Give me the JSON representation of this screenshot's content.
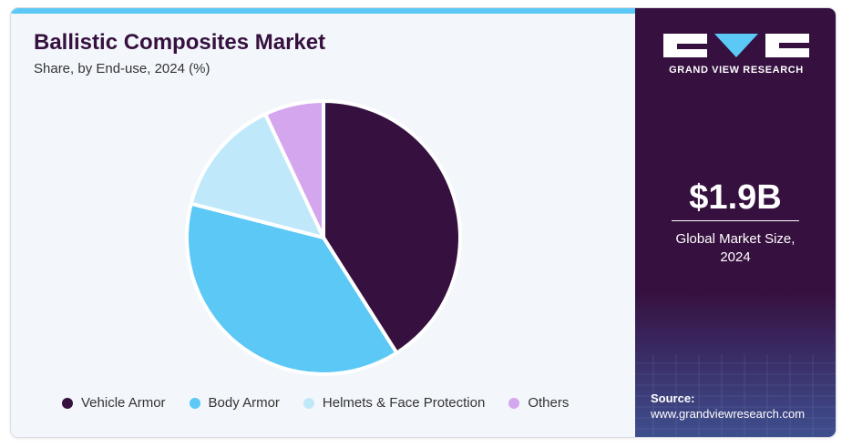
{
  "header": {
    "title": "Ballistic Composites Market",
    "subtitle": "Share, by End-use, 2024 (%)"
  },
  "brand": {
    "name": "GRAND VIEW RESEARCH"
  },
  "summary": {
    "value": "$1.9B",
    "label_line1": "Global Market Size,",
    "label_line2": "2024"
  },
  "source": {
    "label": "Source:",
    "url": "www.grandviewresearch.com"
  },
  "colors": {
    "accent_bar": "#5bc8f5",
    "panel": "#36103f",
    "background": "#f3f7fb"
  },
  "chart_data": {
    "type": "pie",
    "title": "Ballistic Composites Market",
    "subtitle": "Share, by End-use, 2024 (%)",
    "legend_position": "bottom",
    "slices": [
      {
        "label": "Vehicle Armor",
        "value": 41,
        "color": "#36103f"
      },
      {
        "label": "Body Armor",
        "value": 38,
        "color": "#5bc8f5"
      },
      {
        "label": "Helmets & Face Protection",
        "value": 14,
        "color": "#bfe9fb"
      },
      {
        "label": "Others",
        "value": 7,
        "color": "#d4a6ee"
      }
    ]
  }
}
